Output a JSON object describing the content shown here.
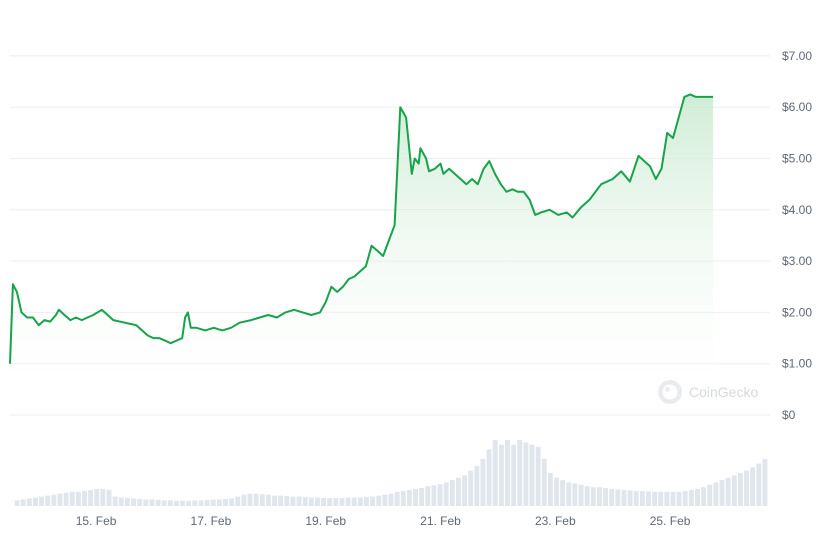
{
  "watermark": {
    "text": "CoinGecko",
    "icon": "coingecko-logo-icon"
  },
  "colors": {
    "line": "#16a34a",
    "area_top": "#cdebd3",
    "grid": "#eeeeee",
    "axis_text": "#5f6775",
    "volume": "#e1e6ec"
  },
  "chart_data": {
    "type": "area",
    "title": "",
    "xlabel": "",
    "ylabel": "",
    "y_ticks": [
      {
        "value": 0,
        "label": "$0"
      },
      {
        "value": 1,
        "label": "$1.00"
      },
      {
        "value": 2,
        "label": "$2.00"
      },
      {
        "value": 3,
        "label": "$3.00"
      },
      {
        "value": 4,
        "label": "$4.00"
      },
      {
        "value": 5,
        "label": "$5.00"
      },
      {
        "value": 6,
        "label": "$6.00"
      },
      {
        "value": 7,
        "label": "$7.00"
      }
    ],
    "ylim": [
      0,
      7
    ],
    "x_ticks": [
      {
        "day": 15,
        "label": "15. Feb"
      },
      {
        "day": 17,
        "label": "17. Feb"
      },
      {
        "day": 19,
        "label": "19. Feb"
      },
      {
        "day": 21,
        "label": "21. Feb"
      },
      {
        "day": 23,
        "label": "23. Feb"
      },
      {
        "day": 25,
        "label": "25. Feb"
      }
    ],
    "xlim_day": [
      13.5,
      26.75
    ],
    "grid": true,
    "price_series": {
      "x_day": [
        13.5,
        13.55,
        13.62,
        13.7,
        13.8,
        13.9,
        14.0,
        14.1,
        14.2,
        14.3,
        14.35,
        14.45,
        14.55,
        14.65,
        14.75,
        14.85,
        14.95,
        15.1,
        15.3,
        15.5,
        15.7,
        15.9,
        16.0,
        16.1,
        16.2,
        16.3,
        16.4,
        16.5,
        16.55,
        16.6,
        16.65,
        16.75,
        16.9,
        17.05,
        17.2,
        17.35,
        17.5,
        17.7,
        17.85,
        18.0,
        18.15,
        18.3,
        18.45,
        18.6,
        18.75,
        18.9,
        19.0,
        19.1,
        19.2,
        19.3,
        19.4,
        19.5,
        19.6,
        19.7,
        19.8,
        19.9,
        20.0,
        20.1,
        20.2,
        20.3,
        20.4,
        20.5,
        20.55,
        20.62,
        20.65,
        20.7,
        20.75,
        20.8,
        20.9,
        21.0,
        21.05,
        21.15,
        21.25,
        21.35,
        21.45,
        21.55,
        21.65,
        21.75,
        21.85,
        21.95,
        22.05,
        22.15,
        22.25,
        22.35,
        22.45,
        22.55,
        22.65,
        22.75,
        22.9,
        23.05,
        23.2,
        23.3,
        23.45,
        23.6,
        23.8,
        24.0,
        24.15,
        24.3,
        24.45,
        24.55,
        24.65,
        24.75,
        24.85,
        24.95,
        25.05,
        25.15,
        25.25,
        25.35,
        25.45,
        25.55,
        25.65,
        25.7,
        25.75
      ],
      "y": [
        1.0,
        2.55,
        2.4,
        2.0,
        1.9,
        1.9,
        1.75,
        1.85,
        1.82,
        1.95,
        2.05,
        1.95,
        1.85,
        1.9,
        1.85,
        1.9,
        1.95,
        2.05,
        1.85,
        1.8,
        1.75,
        1.55,
        1.5,
        1.5,
        1.45,
        1.4,
        1.45,
        1.5,
        1.9,
        2.0,
        1.7,
        1.7,
        1.65,
        1.7,
        1.65,
        1.7,
        1.8,
        1.85,
        1.9,
        1.95,
        1.9,
        2.0,
        2.05,
        2.0,
        1.95,
        2.0,
        2.2,
        2.5,
        2.4,
        2.5,
        2.65,
        2.7,
        2.8,
        2.9,
        3.3,
        3.2,
        3.1,
        3.4,
        3.7,
        6.0,
        5.8,
        4.7,
        5.0,
        4.9,
        5.2,
        5.1,
        5.0,
        4.75,
        4.8,
        4.9,
        4.7,
        4.8,
        4.7,
        4.6,
        4.5,
        4.6,
        4.5,
        4.8,
        4.95,
        4.7,
        4.5,
        4.35,
        4.4,
        4.35,
        4.35,
        4.2,
        3.9,
        3.95,
        4.0,
        3.9,
        3.95,
        3.85,
        4.05,
        4.2,
        4.5,
        4.6,
        4.75,
        4.55,
        5.05,
        4.95,
        4.85,
        4.6,
        4.8,
        5.5,
        5.4,
        5.8,
        6.2,
        6.25,
        6.2,
        6.2,
        6.2,
        6.2,
        6.2
      ]
    },
    "volume_series": {
      "note": "relative trading volume bars below the price chart",
      "values": [
        0.12,
        0.14,
        0.16,
        0.18,
        0.2,
        0.22,
        0.24,
        0.26,
        0.28,
        0.3,
        0.3,
        0.32,
        0.34,
        0.36,
        0.36,
        0.34,
        0.2,
        0.18,
        0.17,
        0.16,
        0.15,
        0.14,
        0.14,
        0.13,
        0.12,
        0.12,
        0.11,
        0.11,
        0.11,
        0.12,
        0.12,
        0.13,
        0.14,
        0.14,
        0.15,
        0.16,
        0.2,
        0.24,
        0.26,
        0.26,
        0.25,
        0.24,
        0.22,
        0.22,
        0.21,
        0.2,
        0.2,
        0.19,
        0.18,
        0.18,
        0.17,
        0.17,
        0.17,
        0.17,
        0.18,
        0.18,
        0.18,
        0.19,
        0.2,
        0.22,
        0.24,
        0.26,
        0.3,
        0.32,
        0.34,
        0.36,
        0.38,
        0.42,
        0.44,
        0.46,
        0.5,
        0.55,
        0.6,
        0.65,
        0.75,
        0.85,
        1.0,
        1.2,
        1.4,
        1.3,
        1.4,
        1.3,
        1.4,
        1.35,
        1.3,
        1.25,
        1.0,
        0.7,
        0.6,
        0.55,
        0.5,
        0.48,
        0.45,
        0.42,
        0.4,
        0.4,
        0.38,
        0.36,
        0.35,
        0.34,
        0.33,
        0.32,
        0.32,
        0.31,
        0.3,
        0.3,
        0.3,
        0.3,
        0.3,
        0.32,
        0.34,
        0.36,
        0.4,
        0.45,
        0.5,
        0.55,
        0.6,
        0.65,
        0.7,
        0.75,
        0.82,
        0.9,
        1.0
      ]
    }
  }
}
